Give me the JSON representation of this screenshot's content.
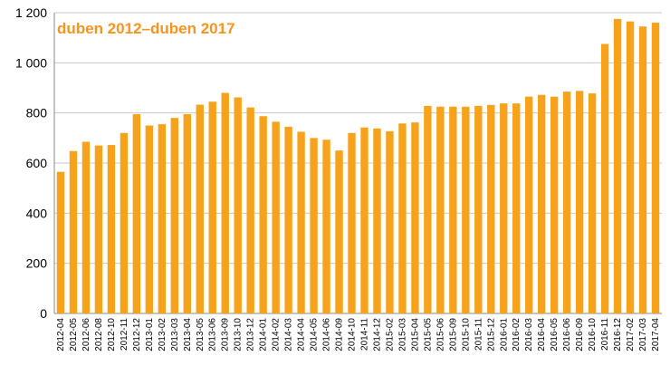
{
  "chart_data": {
    "type": "bar",
    "title": "duben 2012–duben 2017",
    "categories": [
      "2012-04",
      "2012-05",
      "2012-06",
      "2012-08",
      "2012-10",
      "2012-11",
      "2012-12",
      "2013-01",
      "2013-02",
      "2013-03",
      "2013-04",
      "2013-05",
      "2013-06",
      "2013-09",
      "2013-10",
      "2013-12",
      "2014-01",
      "2014-02",
      "2014-03",
      "2014-04",
      "2014-05",
      "2014-06",
      "2014-09",
      "2014-10",
      "2014-11",
      "2014-12",
      "2015-02",
      "2015-03",
      "2015-04",
      "2015-05",
      "2015-06",
      "2015-09",
      "2015-10",
      "2015-11",
      "2015-12",
      "2016-01",
      "2016-02",
      "2016-03",
      "2016-04",
      "2016-05",
      "2016-06",
      "2016-09",
      "2016-10",
      "2016-11",
      "2016-12",
      "2017-02",
      "2017-03",
      "2017-04"
    ],
    "values": [
      565,
      648,
      685,
      670,
      672,
      720,
      795,
      750,
      755,
      780,
      795,
      833,
      845,
      880,
      862,
      822,
      787,
      765,
      745,
      725,
      700,
      693,
      650,
      720,
      742,
      738,
      727,
      758,
      762,
      828,
      825,
      825,
      825,
      828,
      832,
      838,
      838,
      865,
      872,
      865,
      885,
      888,
      878,
      1075,
      1175,
      1165,
      1145,
      1160
    ],
    "color": "#f7a21b",
    "ylim": [
      0,
      1200
    ],
    "yticks": [
      0,
      200,
      400,
      600,
      800,
      {
        "value": 1000,
        "label": "1 000"
      },
      {
        "value": 1200,
        "label": "1 200"
      }
    ],
    "grid": true
  }
}
